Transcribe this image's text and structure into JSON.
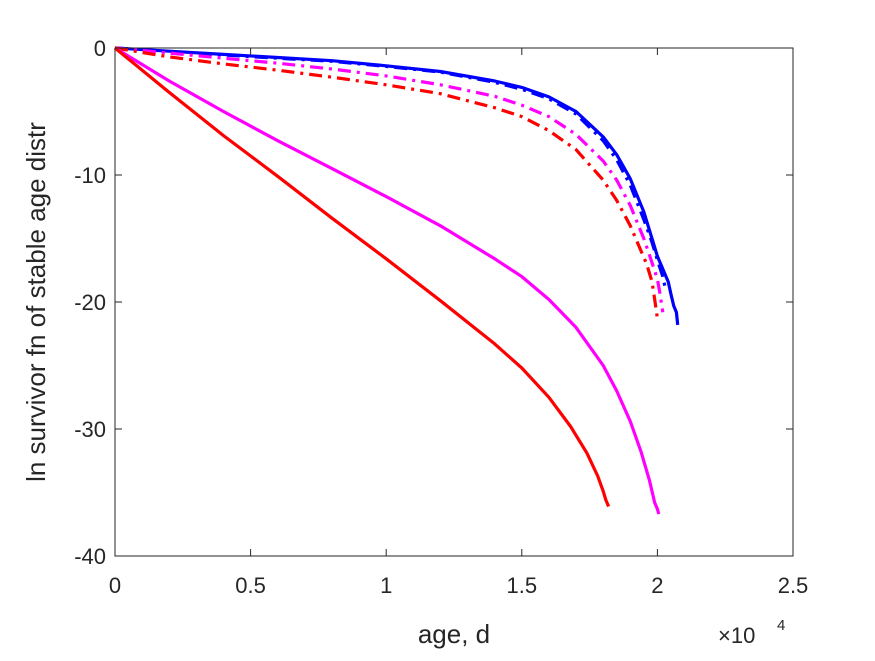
{
  "chart_data": {
    "type": "line",
    "title": "",
    "xlabel": "age, d",
    "ylabel": "ln survivor fn of stable age distr",
    "x_multiplier_label": "×10",
    "x_multiplier_exponent": "4",
    "xlim": [
      0,
      25000
    ],
    "ylim": [
      -40,
      0
    ],
    "grid": false,
    "legend": "none",
    "xticks": [
      0,
      5000,
      10000,
      15000,
      20000,
      25000
    ],
    "xtick_labels": [
      "0",
      "0.5",
      "1",
      "1.5",
      "2",
      "2.5"
    ],
    "yticks": [
      0,
      -10,
      -20,
      -30,
      -40
    ],
    "ytick_labels": [
      "0",
      "-10",
      "-20",
      "-30",
      "-40"
    ],
    "series": [
      {
        "color": "#0000ff",
        "style": "solid",
        "x": [
          0,
          2000,
          4000,
          6000,
          8000,
          10000,
          12000,
          14000,
          15000,
          16000,
          17000,
          18000,
          18500,
          19000,
          19500,
          19800,
          20000,
          20200,
          20400,
          20500,
          20600,
          20700,
          20750
        ],
        "y": [
          0,
          -0.25,
          -0.5,
          -0.75,
          -1.0,
          -1.4,
          -1.85,
          -2.6,
          -3.1,
          -3.85,
          -5.0,
          -7.0,
          -8.4,
          -10.3,
          -12.9,
          -15.0,
          -16.4,
          -17.4,
          -18.4,
          -19.4,
          -20.3,
          -20.8,
          -21.8
        ]
      },
      {
        "color": "#0000ff",
        "style": "dashdot",
        "x": [
          0,
          2000,
          4000,
          6000,
          8000,
          10000,
          12000,
          14000,
          15000,
          16000,
          17000,
          18000,
          18500,
          19000,
          19500,
          19800,
          20000,
          20200,
          20300
        ],
        "y": [
          0,
          -0.3,
          -0.55,
          -0.8,
          -1.05,
          -1.45,
          -1.9,
          -2.7,
          -3.25,
          -4.0,
          -5.2,
          -7.3,
          -8.8,
          -10.8,
          -13.5,
          -15.3,
          -16.7,
          -18.0,
          -19.0
        ]
      },
      {
        "color": "#ff00ff",
        "style": "dashdot",
        "x": [
          0,
          2000,
          4000,
          6000,
          8000,
          10000,
          12000,
          14000,
          15000,
          16000,
          17000,
          18000,
          18500,
          19000,
          19500,
          19800,
          20000,
          20100,
          20200
        ],
        "y": [
          0,
          -0.4,
          -0.8,
          -1.2,
          -1.65,
          -2.2,
          -2.9,
          -3.8,
          -4.5,
          -5.4,
          -6.8,
          -8.9,
          -10.4,
          -12.4,
          -15.0,
          -16.9,
          -18.2,
          -19.4,
          -20.8
        ]
      },
      {
        "color": "#ff0000",
        "style": "dashdot",
        "x": [
          0,
          2000,
          4000,
          6000,
          8000,
          10000,
          12000,
          14000,
          15000,
          16000,
          17000,
          18000,
          18500,
          19000,
          19300,
          19600,
          19800,
          19900,
          20000
        ],
        "y": [
          0,
          -0.7,
          -1.25,
          -1.75,
          -2.3,
          -2.9,
          -3.6,
          -4.7,
          -5.4,
          -6.5,
          -8.0,
          -10.4,
          -12.0,
          -14.0,
          -15.5,
          -17.0,
          -18.4,
          -19.8,
          -21.3
        ]
      },
      {
        "color": "#ff00ff",
        "style": "solid",
        "x": [
          0,
          2000,
          4000,
          6000,
          8000,
          10000,
          12000,
          14000,
          15000,
          16000,
          17000,
          18000,
          18500,
          19000,
          19400,
          19700,
          19900,
          20000,
          20050
        ],
        "y": [
          0,
          -2.6,
          -5.0,
          -7.3,
          -9.5,
          -11.7,
          -14.0,
          -16.6,
          -18.0,
          -19.8,
          -22.0,
          -25.0,
          -27.0,
          -29.4,
          -31.8,
          -34.0,
          -35.8,
          -36.3,
          -36.7
        ]
      },
      {
        "color": "#ff0000",
        "style": "solid",
        "x": [
          0,
          2000,
          4000,
          6000,
          8000,
          10000,
          12000,
          14000,
          15000,
          16000,
          16800,
          17400,
          17800,
          18000,
          18100,
          18200
        ],
        "y": [
          0,
          -3.5,
          -6.9,
          -10.1,
          -13.4,
          -16.6,
          -19.9,
          -23.3,
          -25.2,
          -27.5,
          -29.8,
          -31.9,
          -33.7,
          -34.9,
          -35.6,
          -36.1
        ]
      }
    ]
  }
}
